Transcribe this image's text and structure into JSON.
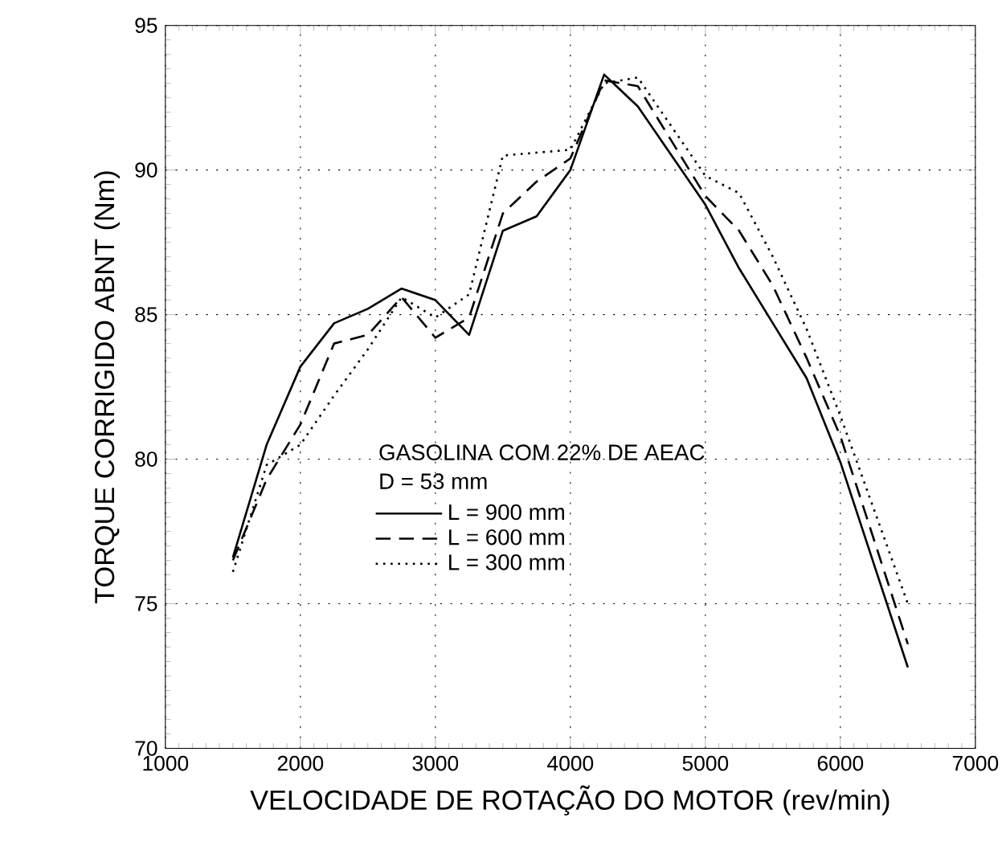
{
  "chart_data": {
    "type": "line",
    "xlabel": "VELOCIDADE DE ROTAÇÃO DO MOTOR (rev/min)",
    "ylabel": "TORQUE CORRIGIDO ABNT (Nm)",
    "legend_title": "GASOLINA COM 22% DE AEAC",
    "annotations": [
      "D = 53 mm"
    ],
    "x": [
      1500,
      1750,
      2000,
      2250,
      2500,
      2750,
      3000,
      3250,
      3500,
      3750,
      4000,
      4250,
      4500,
      5000,
      5250,
      5500,
      5750,
      6000,
      6500
    ],
    "series": [
      {
        "name": "L = 900 mm",
        "color": "#000000",
        "line_style": "solid",
        "values": [
          76.6,
          80.5,
          83.2,
          84.7,
          85.2,
          85.9,
          85.5,
          84.3,
          87.9,
          88.4,
          90.0,
          93.3,
          92.2,
          88.8,
          86.6,
          84.7,
          82.8,
          79.9,
          72.8
        ]
      },
      {
        "name": "L = 600 mm",
        "color": "#000000",
        "line_style": "dashed",
        "values": [
          76.5,
          79.3,
          81.2,
          84.0,
          84.3,
          85.6,
          84.2,
          84.9,
          88.5,
          89.6,
          90.4,
          93.1,
          92.9,
          89.1,
          87.9,
          86.0,
          83.5,
          80.8,
          73.6
        ]
      },
      {
        "name": "L = 300 mm",
        "color": "#000000",
        "line_style": "dotted",
        "values": [
          76.1,
          79.8,
          80.5,
          82.2,
          83.8,
          85.6,
          84.9,
          85.7,
          90.5,
          90.6,
          90.7,
          93.0,
          93.2,
          89.8,
          89.2,
          87.0,
          84.5,
          81.5,
          75.0
        ]
      }
    ],
    "xlim": [
      1000,
      7000
    ],
    "xticks": [
      1000,
      2000,
      3000,
      4000,
      5000,
      6000,
      7000
    ],
    "ylim": [
      70,
      95
    ],
    "yticks": [
      70,
      75,
      80,
      85,
      90,
      95
    ],
    "grid": true,
    "legend": "bottom left",
    "marker": "none"
  }
}
